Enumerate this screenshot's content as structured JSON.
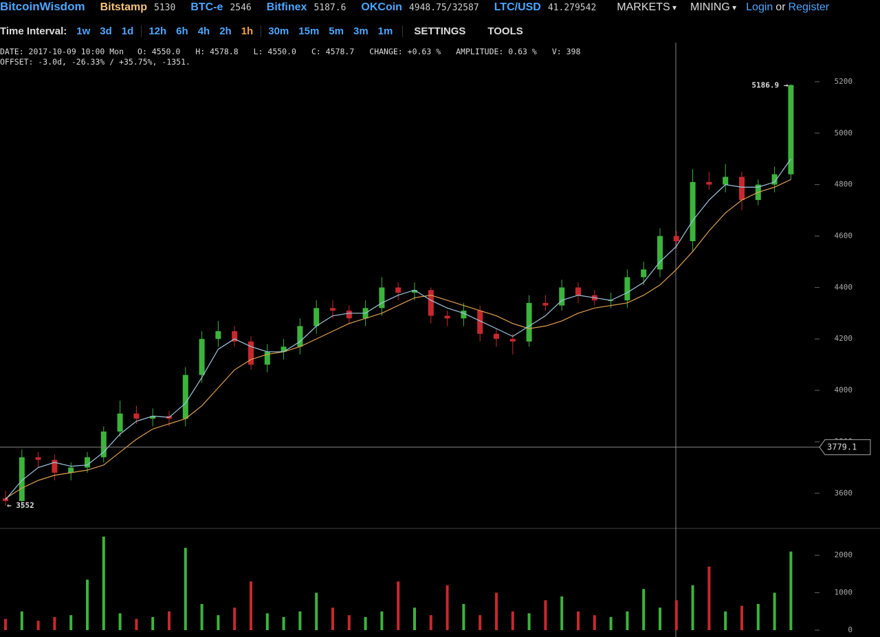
{
  "header": {
    "brand": "BitcoinWisdom",
    "tickers": [
      {
        "name": "Bitstamp",
        "price": "5130"
      },
      {
        "name": "BTC-e",
        "price": "2546"
      },
      {
        "name": "Bitfinex",
        "price": "5187.6"
      },
      {
        "name": "OKCoin",
        "price": "4948.75/32587"
      },
      {
        "name": "LTC/USD",
        "price": "41.279542"
      }
    ],
    "menus": [
      "MARKETS",
      "MINING"
    ],
    "login": "Login",
    "or": "or",
    "register": "Register"
  },
  "toolbar": {
    "label": "Time Interval:",
    "intervals": [
      "1w",
      "3d",
      "1d",
      "12h",
      "6h",
      "4h",
      "2h",
      "1h",
      "30m",
      "15m",
      "5m",
      "3m",
      "1m"
    ],
    "active": "1h",
    "settings": "SETTINGS",
    "tools": "TOOLS"
  },
  "info": {
    "line1": [
      "DATE: 2017-10-09 10:00 Mon",
      "O: 4550.0",
      "H: 4578.8",
      "L: 4550.0",
      "C: 4578.7",
      "CHANGE: +0.63 %",
      "AMPLITUDE: 0.63 %",
      "V: 398"
    ],
    "line2": "OFFSET: -3.0d, -26.33% / +35.75%, -1351."
  },
  "chart_data": {
    "type": "candlestick",
    "open": [
      3580,
      3570,
      3740,
      3730,
      3680,
      3700,
      3740,
      3840,
      3910,
      3890,
      3900,
      3890,
      4060,
      4200,
      4230,
      4190,
      4100,
      4150,
      4170,
      4250,
      4320,
      4310,
      4280,
      4320,
      4400,
      4380,
      4390,
      4290,
      4280,
      4310,
      4220,
      4200,
      4190,
      4340,
      4330,
      4400,
      4370,
      4350,
      4350,
      4440,
      4470,
      4600,
      4580,
      4810,
      4800,
      4830,
      4740,
      4800,
      4840
    ],
    "high": [
      3610,
      3770,
      3760,
      3750,
      3720,
      3760,
      3860,
      3960,
      3940,
      3930,
      3920,
      4090,
      4230,
      4270,
      4250,
      4210,
      4180,
      4200,
      4280,
      4350,
      4350,
      4330,
      4350,
      4440,
      4420,
      4420,
      4400,
      4310,
      4340,
      4330,
      4240,
      4220,
      4370,
      4370,
      4430,
      4420,
      4390,
      4380,
      4470,
      4500,
      4630,
      4620,
      4860,
      4850,
      4880,
      4850,
      4820,
      4870,
      5190
    ],
    "low": [
      3552,
      3540,
      3700,
      3650,
      3650,
      3680,
      3720,
      3820,
      3870,
      3860,
      3860,
      3860,
      4030,
      4170,
      4170,
      4080,
      4070,
      4120,
      4140,
      4220,
      4280,
      4260,
      4250,
      4290,
      4350,
      4350,
      4260,
      4250,
      4250,
      4190,
      4170,
      4140,
      4170,
      4310,
      4310,
      4340,
      4330,
      4320,
      4320,
      4410,
      4440,
      4550,
      4540,
      4780,
      4770,
      4700,
      4720,
      4770,
      4820
    ],
    "close": [
      3570,
      3740,
      3730,
      3680,
      3700,
      3740,
      3840,
      3910,
      3890,
      3900,
      3890,
      4060,
      4200,
      4230,
      4190,
      4100,
      4150,
      4170,
      4250,
      4320,
      4310,
      4280,
      4320,
      4400,
      4380,
      4390,
      4290,
      4280,
      4310,
      4220,
      4200,
      4190,
      4340,
      4330,
      4400,
      4370,
      4350,
      4350,
      4440,
      4470,
      4600,
      4580,
      4810,
      4800,
      4830,
      4740,
      4800,
      4840,
      5186.9
    ],
    "ma_fast": [
      3575,
      3650,
      3700,
      3720,
      3705,
      3710,
      3760,
      3830,
      3880,
      3900,
      3895,
      3950,
      4050,
      4160,
      4200,
      4170,
      4150,
      4150,
      4190,
      4250,
      4290,
      4300,
      4300,
      4340,
      4370,
      4390,
      4350,
      4320,
      4300,
      4270,
      4240,
      4210,
      4250,
      4290,
      4350,
      4370,
      4360,
      4350,
      4380,
      4420,
      4500,
      4560,
      4660,
      4740,
      4800,
      4790,
      4790,
      4810,
      4900
    ],
    "ma_slow": [
      3580,
      3620,
      3650,
      3670,
      3680,
      3690,
      3710,
      3760,
      3810,
      3850,
      3870,
      3890,
      3940,
      4010,
      4080,
      4120,
      4140,
      4150,
      4170,
      4200,
      4230,
      4260,
      4280,
      4300,
      4330,
      4360,
      4370,
      4350,
      4330,
      4310,
      4290,
      4260,
      4240,
      4250,
      4270,
      4300,
      4320,
      4330,
      4340,
      4370,
      4410,
      4470,
      4540,
      4620,
      4690,
      4740,
      4770,
      4790,
      4820
    ],
    "volume": [
      300,
      500,
      250,
      350,
      400,
      1350,
      2500,
      450,
      300,
      350,
      500,
      2200,
      700,
      400,
      600,
      1300,
      450,
      350,
      500,
      1000,
      600,
      400,
      350,
      500,
      1300,
      600,
      400,
      1200,
      700,
      400,
      1000,
      500,
      450,
      800,
      900,
      500,
      400,
      350,
      500,
      1100,
      600,
      800,
      1200,
      1700,
      500,
      650,
      700,
      1000,
      2100
    ],
    "up_color": "#3cb43c",
    "down_color": "#c8282d",
    "ma_fast_color": "#9fc7e0",
    "ma_slow_color": "#e0a050",
    "ylim": [
      3466,
      5352
    ],
    "yticks": [
      3600,
      3800,
      4000,
      4200,
      4400,
      4600,
      4800,
      5000,
      5200
    ],
    "volume_ylim": [
      0,
      2700
    ],
    "volume_yticks": [
      0,
      1000,
      2000
    ],
    "crosshair_price": 3779.1,
    "high_marker": "5186.9 →",
    "low_marker": "← 3552"
  }
}
